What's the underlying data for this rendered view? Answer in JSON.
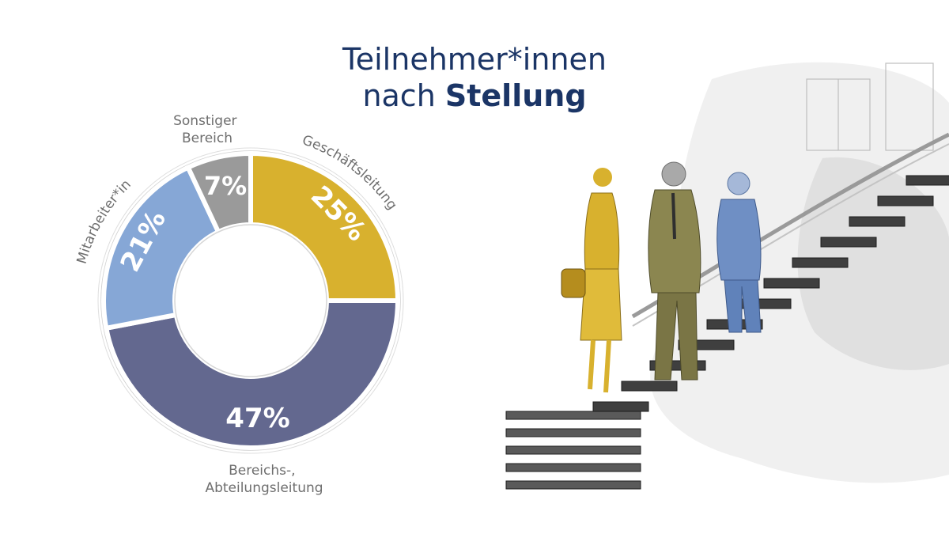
{
  "title": {
    "line1": "Teilnehmer*innen",
    "line2_regular": "nach ",
    "line2_bold": "Stellung"
  },
  "chart_data": {
    "type": "pie",
    "donut": true,
    "unit": "%",
    "slices": [
      {
        "label": "Geschäftsleitung",
        "value": 25,
        "display": "25%",
        "color": "#d8b12e"
      },
      {
        "label": "Bereichs-, Abteilungsleitung",
        "label_lines": [
          "Bereichs-,",
          "Abteilungsleitung"
        ],
        "value": 47,
        "display": "47%",
        "color": "#63688f"
      },
      {
        "label": "Mitarbeiter*in",
        "value": 21,
        "display": "21%",
        "color": "#86a7d6"
      },
      {
        "label": "Sonstiger Bereich",
        "label_lines": [
          "Sonstiger",
          "Bereich"
        ],
        "value": 7,
        "display": "7%",
        "color": "#9a9a9a"
      }
    ]
  },
  "colors": {
    "title": "#1b3566",
    "label": "#6e6e6e",
    "figure_gold": "#d8b12e",
    "figure_olive": "#8b8650",
    "figure_blue": "#6f8fc4"
  },
  "illustration": "three business people talking on a staircase, watercolor sketch"
}
